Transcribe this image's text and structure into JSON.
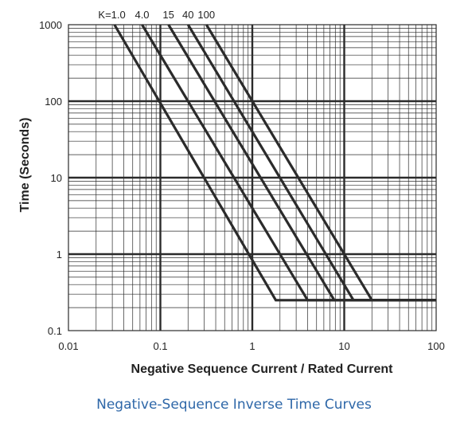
{
  "chart_data": {
    "type": "line",
    "title": "",
    "xlabel": "Negative Sequence Current / Rated Current",
    "ylabel": "Time (Seconds)",
    "x_scale": "log",
    "y_scale": "log",
    "xlim": [
      0.01,
      100
    ],
    "ylim": [
      0.1,
      1000
    ],
    "grid": true,
    "x_ticks": [
      "0.01",
      "0.1",
      "1",
      "10",
      "100"
    ],
    "y_ticks": [
      "0.1",
      "1",
      "10",
      "100",
      "1000"
    ],
    "legend": "none",
    "curve_label_prefix": "K=",
    "series": [
      {
        "name": "1.0",
        "label": "K=1.0",
        "points": [
          [
            0.031623,
            1000
          ],
          [
            1.8,
            0.25
          ],
          [
            100,
            0.25
          ]
        ]
      },
      {
        "name": "4.0",
        "label": "4.0",
        "points": [
          [
            0.063246,
            1000
          ],
          [
            4.0,
            0.25
          ],
          [
            100,
            0.25
          ]
        ]
      },
      {
        "name": "15",
        "label": "15",
        "points": [
          [
            0.12247,
            1000
          ],
          [
            7.8,
            0.25
          ],
          [
            100,
            0.25
          ]
        ]
      },
      {
        "name": "40",
        "label": "40",
        "points": [
          [
            0.2,
            1000
          ],
          [
            12.6,
            0.25
          ],
          [
            100,
            0.25
          ]
        ]
      },
      {
        "name": "100",
        "label": "100",
        "points": [
          [
            0.31623,
            1000
          ],
          [
            20,
            0.25
          ],
          [
            100,
            0.25
          ]
        ]
      }
    ],
    "line_color": "#2b2b2b",
    "grid_color": "#2b2b2b"
  },
  "caption": "Negative-Sequence Inverse Time Curves"
}
